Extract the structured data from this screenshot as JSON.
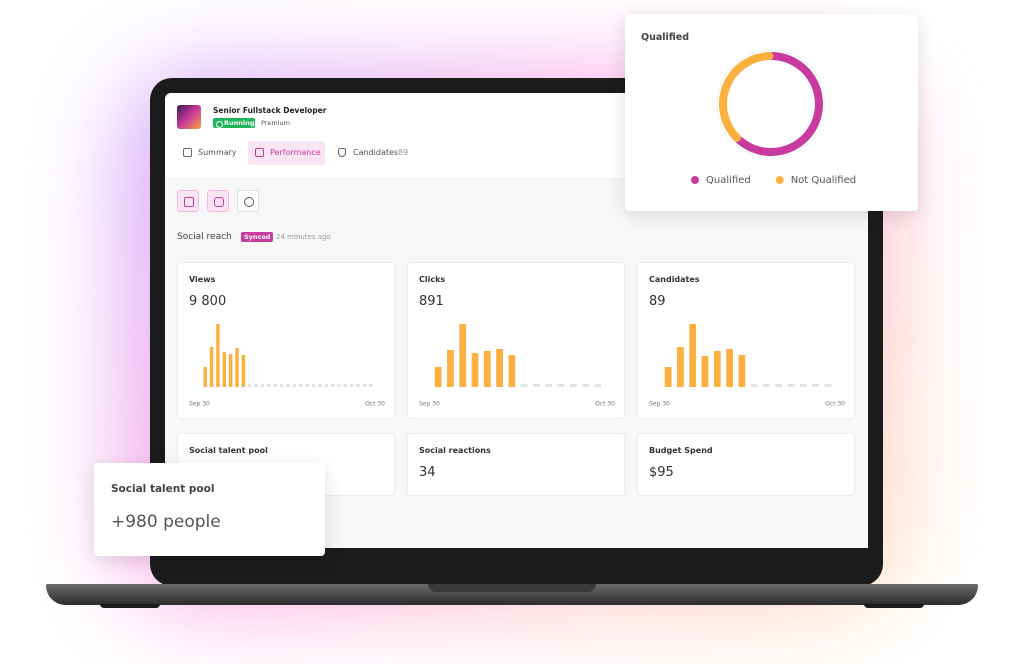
{
  "job": {
    "title": "Senior Fullstack Developer",
    "status": "Running",
    "plan": "Premium"
  },
  "tabs": [
    {
      "label": "Summary"
    },
    {
      "label": "Performance"
    },
    {
      "label": "Candidates",
      "count": "89"
    }
  ],
  "section": {
    "title": "Social reach",
    "badge": "Synced",
    "updated": "24 minutes ago"
  },
  "chart_data": [
    {
      "type": "bar",
      "title": "Views",
      "subtitle": "9 800",
      "color": "#fbb040",
      "categories": [
        "Sep 30",
        null,
        null,
        null,
        null,
        null,
        null,
        null,
        null,
        null,
        null,
        null,
        null,
        null,
        null,
        null,
        null,
        null,
        null,
        null,
        null,
        null,
        null,
        null,
        null,
        null,
        "Oct 30"
      ],
      "values": [
        20,
        40,
        63,
        35,
        33,
        39,
        32,
        null,
        null,
        null,
        null,
        null,
        null,
        null,
        null,
        null,
        null,
        null,
        null,
        null,
        null,
        null,
        null,
        null,
        null,
        null,
        null
      ]
    },
    {
      "type": "bar",
      "title": "Clicks",
      "subtitle": "891",
      "color": "#fbb040",
      "categories": [
        "Sep 30",
        null,
        null,
        null,
        null,
        null,
        null,
        null,
        null,
        null,
        null,
        null,
        null,
        "Oct 30"
      ],
      "values": [
        20,
        37,
        63,
        34,
        36,
        38,
        32,
        null,
        null,
        null,
        null,
        null,
        null,
        null
      ]
    },
    {
      "type": "bar",
      "title": "Candidates",
      "subtitle": "89",
      "color": "#fbb040",
      "categories": [
        "Sep 30",
        null,
        null,
        null,
        null,
        null,
        null,
        null,
        null,
        null,
        null,
        null,
        null,
        "Oct 30"
      ],
      "values": [
        20,
        40,
        63,
        31,
        36,
        38,
        32,
        null,
        null,
        null,
        null,
        null,
        null,
        null
      ]
    },
    {
      "type": "pie",
      "title": "Qualified",
      "donut": true,
      "categories": [
        "Qualified",
        "Not Qualified"
      ],
      "values": [
        62,
        38
      ],
      "colors": [
        "#c93a9e",
        "#fbb040"
      ]
    }
  ],
  "stats": [
    {
      "title": "Social talent pool"
    },
    {
      "title": "Social reactions",
      "value": "34"
    },
    {
      "title": "Budget Spend",
      "value": "$95"
    }
  ],
  "popup": {
    "title": "Social talent pool",
    "value": "+980 people"
  }
}
